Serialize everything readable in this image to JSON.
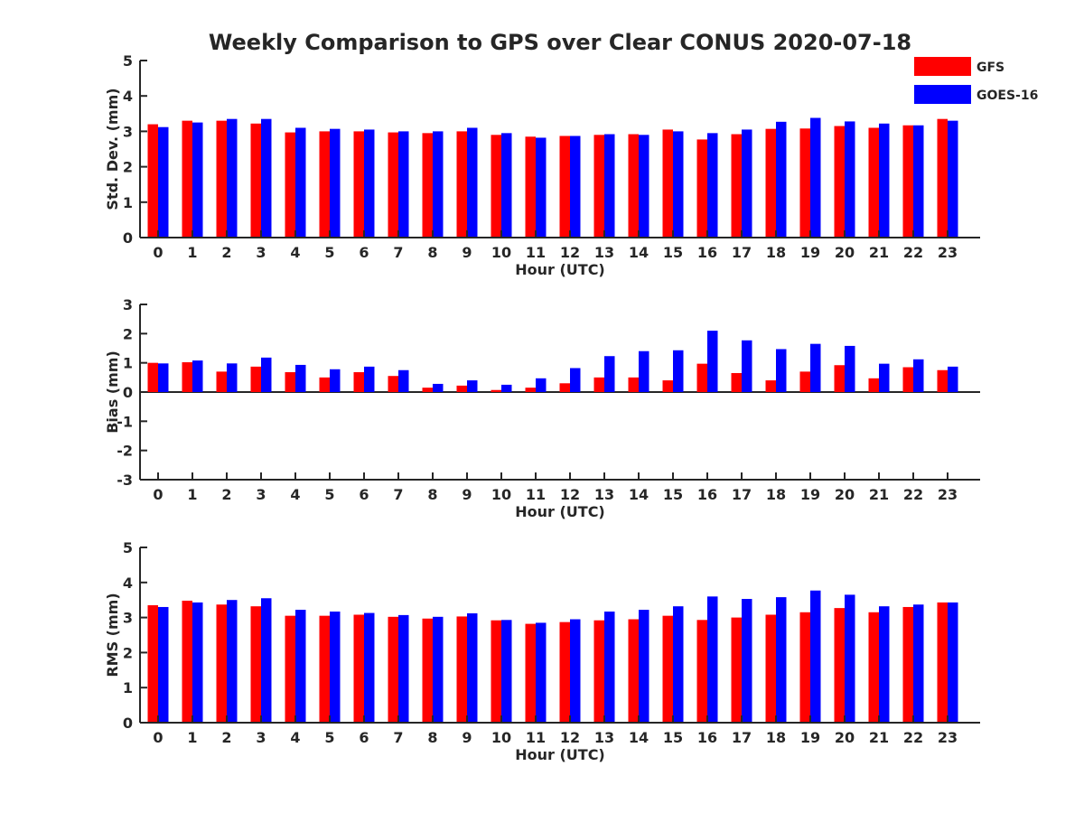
{
  "figure": {
    "title": "Weekly Comparison to GPS over Clear CONUS 2020-07-18",
    "colors": {
      "GFS": "#ff0000",
      "GOES-16": "#0000ff"
    }
  },
  "chart_data": [
    {
      "type": "bar",
      "title": "Weekly Comparison to GPS over Clear CONUS 2020-07-18",
      "xlabel": "Hour (UTC)",
      "ylabel": "Std. Dev. (mm)",
      "ylim": [
        0,
        5
      ],
      "yticks": [
        0,
        1,
        2,
        3,
        4,
        5
      ],
      "categories": [
        "0",
        "1",
        "2",
        "3",
        "4",
        "5",
        "6",
        "7",
        "8",
        "9",
        "10",
        "11",
        "12",
        "13",
        "14",
        "15",
        "16",
        "17",
        "18",
        "19",
        "20",
        "21",
        "22",
        "23"
      ],
      "legend": "top-right",
      "series": [
        {
          "name": "GFS",
          "color": "#ff0000",
          "values": [
            3.2,
            3.3,
            3.3,
            3.22,
            2.97,
            3.0,
            3.0,
            2.97,
            2.95,
            3.0,
            2.9,
            2.85,
            2.87,
            2.9,
            2.92,
            3.05,
            2.77,
            2.92,
            3.07,
            3.08,
            3.15,
            3.1,
            3.17,
            3.35
          ]
        },
        {
          "name": "GOES-16",
          "color": "#0000ff",
          "values": [
            3.12,
            3.25,
            3.35,
            3.35,
            3.1,
            3.07,
            3.05,
            3.0,
            3.0,
            3.1,
            2.95,
            2.82,
            2.87,
            2.92,
            2.9,
            3.0,
            2.95,
            3.05,
            3.27,
            3.38,
            3.28,
            3.22,
            3.17,
            3.3
          ]
        }
      ]
    },
    {
      "type": "bar",
      "xlabel": "Hour (UTC)",
      "ylabel": "Bias (mm)",
      "ylim": [
        -3,
        3
      ],
      "yticks": [
        -3,
        -2,
        -1,
        0,
        1,
        2,
        3
      ],
      "categories": [
        "0",
        "1",
        "2",
        "3",
        "4",
        "5",
        "6",
        "7",
        "8",
        "9",
        "10",
        "11",
        "12",
        "13",
        "14",
        "15",
        "16",
        "17",
        "18",
        "19",
        "20",
        "21",
        "22",
        "23"
      ],
      "series": [
        {
          "name": "GFS",
          "color": "#ff0000",
          "values": [
            1.0,
            1.02,
            0.7,
            0.87,
            0.68,
            0.5,
            0.68,
            0.55,
            0.15,
            0.22,
            0.07,
            0.15,
            0.3,
            0.5,
            0.5,
            0.4,
            0.97,
            0.65,
            0.4,
            0.7,
            0.92,
            0.47,
            0.85,
            0.75
          ]
        },
        {
          "name": "GOES-16",
          "color": "#0000ff",
          "values": [
            0.98,
            1.08,
            0.98,
            1.18,
            0.93,
            0.78,
            0.87,
            0.75,
            0.28,
            0.4,
            0.25,
            0.47,
            0.82,
            1.23,
            1.4,
            1.43,
            2.1,
            1.77,
            1.47,
            1.65,
            1.58,
            0.97,
            1.12,
            0.87
          ]
        }
      ]
    },
    {
      "type": "bar",
      "xlabel": "Hour (UTC)",
      "ylabel": "RMS (mm)",
      "ylim": [
        0,
        5
      ],
      "yticks": [
        0,
        1,
        2,
        3,
        4,
        5
      ],
      "categories": [
        "0",
        "1",
        "2",
        "3",
        "4",
        "5",
        "6",
        "7",
        "8",
        "9",
        "10",
        "11",
        "12",
        "13",
        "14",
        "15",
        "16",
        "17",
        "18",
        "19",
        "20",
        "21",
        "22",
        "23"
      ],
      "series": [
        {
          "name": "GFS",
          "color": "#ff0000",
          "values": [
            3.35,
            3.48,
            3.37,
            3.32,
            3.05,
            3.05,
            3.08,
            3.02,
            2.97,
            3.03,
            2.92,
            2.82,
            2.87,
            2.92,
            2.95,
            3.05,
            2.93,
            3.0,
            3.08,
            3.15,
            3.27,
            3.15,
            3.3,
            3.43
          ]
        },
        {
          "name": "GOES-16",
          "color": "#0000ff",
          "values": [
            3.3,
            3.43,
            3.5,
            3.55,
            3.22,
            3.17,
            3.13,
            3.07,
            3.02,
            3.12,
            2.93,
            2.85,
            2.95,
            3.17,
            3.22,
            3.32,
            3.6,
            3.53,
            3.58,
            3.77,
            3.65,
            3.32,
            3.37,
            3.43
          ]
        }
      ]
    }
  ]
}
